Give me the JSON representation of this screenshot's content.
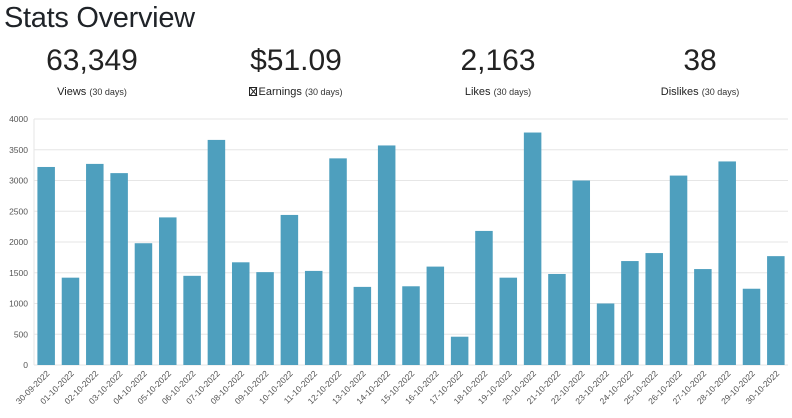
{
  "page": {
    "title": "Stats Overview"
  },
  "stats": [
    {
      "value": "63,349",
      "label": "Views",
      "period": "(30 days)"
    },
    {
      "value": "$51.09",
      "label": "Earnings",
      "period": "(30 days)",
      "icon": "missing-glyph-icon"
    },
    {
      "value": "2,163",
      "label": "Likes",
      "period": "(30 days)"
    },
    {
      "value": "38",
      "label": "Dislikes",
      "period": "(30 days)"
    }
  ],
  "chart_data": {
    "type": "bar",
    "color": "#4e9fbe",
    "grid": true,
    "ylim": [
      0,
      4000
    ],
    "yticks": [
      0,
      500,
      1000,
      1500,
      2000,
      2500,
      3000,
      3500,
      4000
    ],
    "categories": [
      "30-09-2022",
      "01-10-2022",
      "02-10-2022",
      "03-10-2022",
      "04-10-2022",
      "05-10-2022",
      "06-10-2022",
      "07-10-2022",
      "08-10-2022",
      "09-10-2022",
      "10-10-2022",
      "11-10-2022",
      "12-10-2022",
      "13-10-2022",
      "14-10-2022",
      "15-10-2022",
      "16-10-2022",
      "17-10-2022",
      "18-10-2022",
      "19-10-2022",
      "20-10-2022",
      "21-10-2022",
      "22-10-2022",
      "23-10-2022",
      "24-10-2022",
      "25-10-2022",
      "26-10-2022",
      "27-10-2022",
      "28-10-2022",
      "29-10-2022",
      "30-10-2022"
    ],
    "values": [
      3220,
      1420,
      3270,
      3120,
      1980,
      2400,
      1450,
      3660,
      1670,
      1510,
      2440,
      1530,
      3360,
      1270,
      3570,
      1280,
      1600,
      460,
      2180,
      1420,
      3780,
      1480,
      3000,
      1000,
      1690,
      1820,
      3080,
      1560,
      3310,
      1240,
      1770
    ]
  }
}
